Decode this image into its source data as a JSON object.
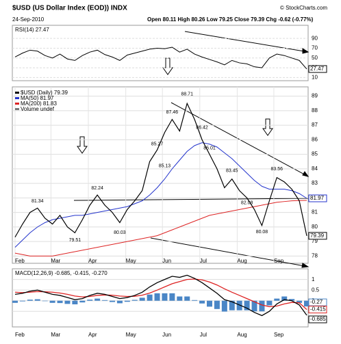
{
  "chart_data": {
    "type": "line",
    "title": "$USD (US Dollar Index (EOD)) INDX",
    "credit": "© StockCharts.com",
    "date": "24-Sep-2010",
    "quote": "Open 80.11 High 80.26 Low 79.25 Close 79.39 Chg -0.62 (-0.77%)",
    "xlim": [
      0,
      39
    ],
    "xticks": [
      {
        "value": 0,
        "label": "Feb"
      },
      {
        "value": 4.8,
        "label": "Mar"
      },
      {
        "value": 9.8,
        "label": "Apr"
      },
      {
        "value": 14.8,
        "label": "May"
      },
      {
        "value": 19.7,
        "label": "Jun"
      },
      {
        "value": 24.7,
        "label": "Jul"
      },
      {
        "value": 29.7,
        "label": "Aug"
      },
      {
        "value": 34.6,
        "label": "Sep"
      }
    ],
    "rsi": {
      "label": "RSI(14) 27.47",
      "ylim": [
        5,
        100
      ],
      "yticks": [
        90,
        70,
        50,
        30,
        10
      ],
      "color": "#000000",
      "values": [
        52,
        60,
        66,
        64,
        55,
        50,
        58,
        48,
        45,
        55,
        62,
        66,
        57,
        52,
        45,
        56,
        60,
        64,
        68,
        70,
        69,
        72,
        62,
        68,
        58,
        52,
        47,
        42,
        36,
        45,
        40,
        38,
        32,
        30,
        50,
        58,
        55,
        50,
        45,
        27.47
      ]
    },
    "price": {
      "ylim": [
        77.5,
        89.5
      ],
      "yticks": [
        78,
        79,
        80,
        81,
        82,
        83,
        84,
        85,
        86,
        87,
        88,
        89
      ],
      "series": [
        {
          "name": "$USD (Daily) 79.39",
          "color": "#000000",
          "values": [
            79.3,
            80.2,
            81.0,
            81.3,
            80.6,
            80.2,
            80.8,
            80.0,
            79.6,
            80.5,
            81.5,
            82.2,
            81.5,
            81.0,
            80.3,
            81.2,
            81.8,
            82.5,
            84.5,
            85.3,
            86.5,
            87.4,
            86.6,
            88.5,
            87.4,
            86.0,
            85.0,
            84.0,
            82.7,
            83.3,
            82.5,
            82.0,
            81.2,
            80.1,
            81.8,
            83.4,
            83.1,
            82.6,
            81.8,
            79.39
          ]
        },
        {
          "name": "MA(50) 81.97",
          "color": "#2233cc",
          "values": [
            78.6,
            79.1,
            79.6,
            80.0,
            80.3,
            80.5,
            80.6,
            80.7,
            80.8,
            80.8,
            80.9,
            81.0,
            81.1,
            81.2,
            81.3,
            81.4,
            81.6,
            81.8,
            82.2,
            82.7,
            83.3,
            84.0,
            84.6,
            85.2,
            85.6,
            85.8,
            85.7,
            85.5,
            85.1,
            84.7,
            84.2,
            83.7,
            83.2,
            82.8,
            82.6,
            82.6,
            82.6,
            82.5,
            82.3,
            81.97
          ]
        },
        {
          "name": "MA(200) 81.83",
          "color": "#dd2222",
          "values": [
            78.2,
            78.1,
            78.0,
            78.0,
            78.0,
            78.0,
            78.1,
            78.2,
            78.3,
            78.4,
            78.5,
            78.6,
            78.7,
            78.8,
            78.9,
            79.0,
            79.1,
            79.2,
            79.3,
            79.4,
            79.6,
            79.8,
            80.0,
            80.2,
            80.4,
            80.6,
            80.8,
            80.9,
            81.0,
            81.1,
            81.2,
            81.3,
            81.4,
            81.5,
            81.6,
            81.7,
            81.75,
            81.8,
            81.82,
            81.83
          ]
        }
      ],
      "volume": "Volume undef",
      "annotations": [
        81.34,
        82.24,
        79.51,
        80.03,
        87.46,
        85.27,
        85.13,
        88.71,
        86.42,
        85.01,
        83.45,
        82.08,
        80.08,
        83.56
      ]
    },
    "macd": {
      "label": "MACD(12,26,9) -0.685, -0.415, -0.270",
      "ylim": [
        -1.2,
        1.6
      ],
      "yticks": [
        1.0,
        0.5,
        0.0,
        -0.5
      ],
      "series": [
        {
          "name": "MACD",
          "color": "#000000",
          "values": [
            0.3,
            0.35,
            0.45,
            0.5,
            0.4,
            0.3,
            0.25,
            0.15,
            0.05,
            0.1,
            0.25,
            0.35,
            0.3,
            0.2,
            0.1,
            0.15,
            0.25,
            0.4,
            0.65,
            0.85,
            1.0,
            1.15,
            1.1,
            1.2,
            1.05,
            0.85,
            0.6,
            0.35,
            0.05,
            -0.05,
            -0.2,
            -0.35,
            -0.55,
            -0.7,
            -0.5,
            -0.15,
            0.05,
            0.0,
            -0.2,
            -0.685
          ]
        },
        {
          "name": "Signal",
          "color": "#dd2222",
          "values": [
            0.4,
            0.38,
            0.4,
            0.43,
            0.42,
            0.4,
            0.36,
            0.3,
            0.22,
            0.18,
            0.2,
            0.25,
            0.27,
            0.26,
            0.22,
            0.2,
            0.21,
            0.26,
            0.36,
            0.5,
            0.65,
            0.8,
            0.9,
            1.0,
            1.02,
            0.98,
            0.88,
            0.74,
            0.56,
            0.4,
            0.25,
            0.1,
            -0.05,
            -0.2,
            -0.28,
            -0.25,
            -0.15,
            -0.08,
            -0.1,
            -0.415
          ]
        },
        {
          "name": "Histogram",
          "color": "#4a86c6",
          "values": [
            -0.1,
            -0.03,
            0.05,
            0.07,
            -0.02,
            -0.1,
            -0.11,
            -0.15,
            -0.17,
            -0.08,
            0.05,
            0.1,
            0.03,
            -0.06,
            -0.12,
            -0.05,
            0.04,
            0.14,
            0.29,
            0.35,
            0.35,
            0.35,
            0.2,
            0.2,
            0.03,
            -0.13,
            -0.28,
            -0.39,
            -0.51,
            -0.45,
            -0.45,
            -0.45,
            -0.5,
            -0.5,
            -0.22,
            0.1,
            0.2,
            0.08,
            -0.1,
            -0.27
          ]
        }
      ]
    }
  }
}
